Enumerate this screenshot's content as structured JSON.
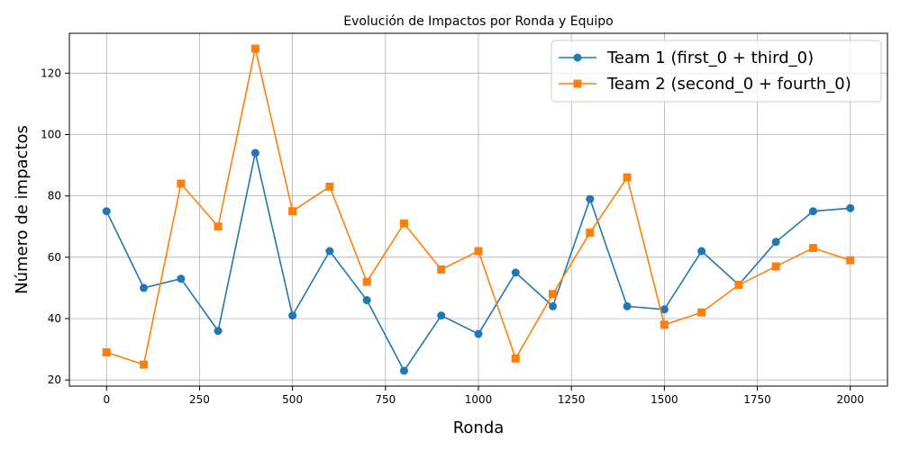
{
  "chart_data": {
    "type": "line",
    "title": "Evolución de Impactos por Ronda y Equipo",
    "xlabel": "Ronda",
    "ylabel": "Número de impactos",
    "xlim": [
      -100,
      2100
    ],
    "ylim": [
      18,
      133
    ],
    "xticks": [
      0,
      250,
      500,
      750,
      1000,
      1250,
      1500,
      1750,
      2000
    ],
    "yticks": [
      20,
      40,
      60,
      80,
      100,
      120
    ],
    "grid": true,
    "legend_position": "top-right",
    "x": [
      0,
      100,
      200,
      300,
      400,
      500,
      600,
      700,
      800,
      900,
      1000,
      1100,
      1200,
      1300,
      1400,
      1500,
      1600,
      1700,
      1800,
      1900,
      2000
    ],
    "series": [
      {
        "name": "Team 1 (first_0 + third_0)",
        "color": "#1f77b4",
        "marker": "circle",
        "values": [
          75,
          50,
          53,
          36,
          94,
          41,
          62,
          46,
          23,
          41,
          35,
          55,
          44,
          79,
          44,
          43,
          62,
          51,
          65,
          75,
          76
        ]
      },
      {
        "name": "Team 2 (second_0 + fourth_0)",
        "color": "#ff7f0e",
        "marker": "square",
        "values": [
          29,
          25,
          84,
          70,
          128,
          75,
          83,
          52,
          71,
          56,
          62,
          27,
          48,
          68,
          86,
          38,
          42,
          51,
          57,
          63,
          59
        ]
      }
    ]
  }
}
